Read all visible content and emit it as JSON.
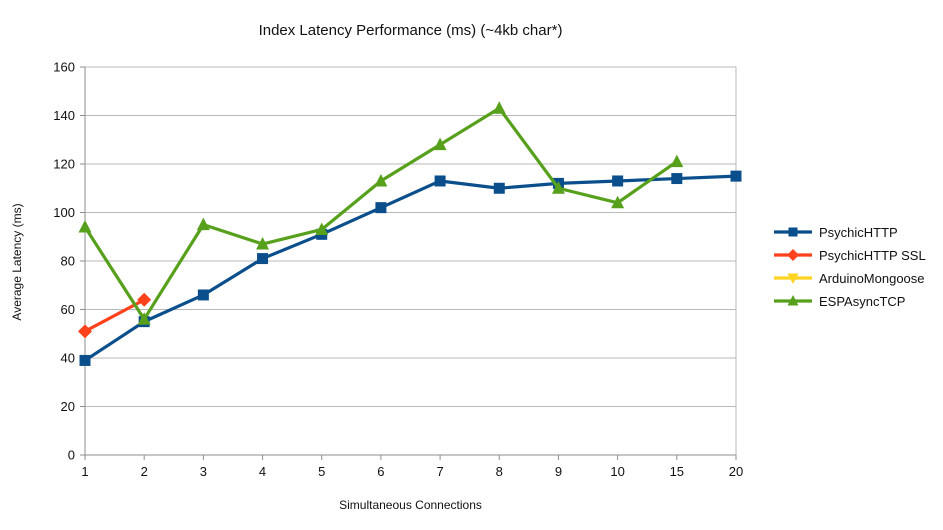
{
  "chart_data": {
    "type": "line",
    "title": "Index Latency Performance (ms) (~4kb char*)",
    "xlabel": "Simultaneous Connections",
    "ylabel": "Average Latency (ms)",
    "categories": [
      "1",
      "2",
      "3",
      "4",
      "5",
      "6",
      "7",
      "8",
      "9",
      "10",
      "15",
      "20"
    ],
    "ylim": [
      0,
      160
    ],
    "ytick_step": 20,
    "grid": "horizontal",
    "legend_position": "right",
    "series": [
      {
        "name": "PsychicHTTP",
        "color": "#0a4f8c",
        "marker": "square",
        "values": [
          39,
          55,
          66,
          81,
          91,
          102,
          113,
          110,
          112,
          113,
          114,
          115
        ]
      },
      {
        "name": "PsychicHTTP SSL",
        "color": "#ff421c",
        "marker": "diamond",
        "values": [
          51,
          64,
          null,
          null,
          null,
          null,
          null,
          null,
          null,
          null,
          null,
          null
        ]
      },
      {
        "name": "ArduinoMongoose",
        "color": "#ffd320",
        "marker": "triangle-down",
        "values": [
          null,
          null,
          null,
          null,
          null,
          null,
          null,
          null,
          null,
          null,
          null,
          null
        ]
      },
      {
        "name": "ESPAsyncTCP",
        "color": "#57a01c",
        "marker": "triangle-up",
        "values": [
          94,
          56,
          95,
          87,
          93,
          113,
          128,
          143,
          110,
          104,
          121,
          null
        ]
      }
    ],
    "colors": {
      "gridline": "#b9b9b9",
      "axis": "#8e8e8e",
      "tick_text": "#111111"
    }
  }
}
